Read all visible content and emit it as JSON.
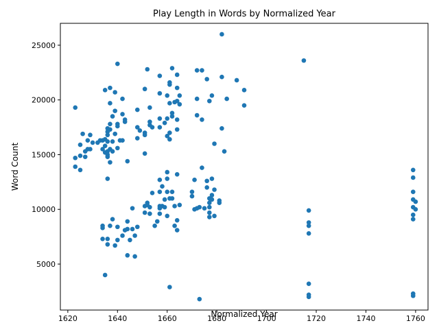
{
  "chart_data": {
    "type": "scatter",
    "title": "Play Length in Words by Normalized Year",
    "xlabel": "Normalized Year",
    "ylabel": "Word Count",
    "xlim": [
      1617,
      1765
    ],
    "ylim": [
      800,
      27000
    ],
    "xticks": [
      1620,
      1640,
      1660,
      1680,
      1700,
      1720,
      1740,
      1760
    ],
    "yticks": [
      5000,
      10000,
      15000,
      20000,
      25000
    ],
    "xtick_labels": [
      "1620",
      "1640",
      "1660",
      "1680",
      "1700",
      "1720",
      "1740",
      "1760"
    ],
    "ytick_labels": [
      "5000",
      "10000",
      "15000",
      "20000",
      "25000"
    ],
    "grid": false,
    "marker_color": "#1f77b4",
    "series": [
      {
        "points": [
          [
            1623,
            19300
          ],
          [
            1623,
            14700
          ],
          [
            1623,
            13900
          ],
          [
            1625,
            15900
          ],
          [
            1625,
            14900
          ],
          [
            1625,
            13600
          ],
          [
            1626,
            16900
          ],
          [
            1627,
            15300
          ],
          [
            1627,
            14800
          ],
          [
            1628,
            16300
          ],
          [
            1628,
            15500
          ],
          [
            1629,
            16800
          ],
          [
            1629,
            15500
          ],
          [
            1630,
            16100
          ],
          [
            1632,
            16100
          ],
          [
            1633,
            16300
          ],
          [
            1634,
            15500
          ],
          [
            1634,
            16300
          ],
          [
            1634,
            8500
          ],
          [
            1634,
            8300
          ],
          [
            1634,
            7300
          ],
          [
            1635,
            20900
          ],
          [
            1635,
            16400
          ],
          [
            1635,
            15800
          ],
          [
            1635,
            15200
          ],
          [
            1635,
            4000
          ],
          [
            1636,
            17400
          ],
          [
            1636,
            17100
          ],
          [
            1636,
            16800
          ],
          [
            1636,
            16200
          ],
          [
            1636,
            15300
          ],
          [
            1636,
            15000
          ],
          [
            1636,
            14800
          ],
          [
            1636,
            12800
          ],
          [
            1636,
            7300
          ],
          [
            1636,
            6800
          ],
          [
            1637,
            21100
          ],
          [
            1637,
            19700
          ],
          [
            1637,
            17800
          ],
          [
            1637,
            17300
          ],
          [
            1637,
            15500
          ],
          [
            1637,
            14300
          ],
          [
            1637,
            8500
          ],
          [
            1638,
            18500
          ],
          [
            1638,
            16200
          ],
          [
            1638,
            15300
          ],
          [
            1638,
            9100
          ],
          [
            1639,
            20700
          ],
          [
            1639,
            19000
          ],
          [
            1639,
            16900
          ],
          [
            1639,
            6700
          ],
          [
            1640,
            23300
          ],
          [
            1640,
            17800
          ],
          [
            1640,
            17600
          ],
          [
            1640,
            15600
          ],
          [
            1640,
            8400
          ],
          [
            1640,
            7200
          ],
          [
            1641,
            16300
          ],
          [
            1642,
            20100
          ],
          [
            1642,
            18700
          ],
          [
            1642,
            16300
          ],
          [
            1642,
            7600
          ],
          [
            1643,
            18200
          ],
          [
            1643,
            18000
          ],
          [
            1643,
            8100
          ],
          [
            1644,
            14400
          ],
          [
            1644,
            8900
          ],
          [
            1644,
            8200
          ],
          [
            1644,
            5800
          ],
          [
            1645,
            7200
          ],
          [
            1646,
            10100
          ],
          [
            1646,
            8200
          ],
          [
            1647,
            7600
          ],
          [
            1647,
            5700
          ],
          [
            1648,
            19100
          ],
          [
            1648,
            17500
          ],
          [
            1648,
            16500
          ],
          [
            1648,
            8400
          ],
          [
            1649,
            17200
          ],
          [
            1651,
            21000
          ],
          [
            1651,
            17000
          ],
          [
            1651,
            16800
          ],
          [
            1651,
            15100
          ],
          [
            1651,
            10300
          ],
          [
            1651,
            9700
          ],
          [
            1652,
            22800
          ],
          [
            1652,
            10600
          ],
          [
            1652,
            10400
          ],
          [
            1653,
            19300
          ],
          [
            1653,
            18000
          ],
          [
            1653,
            17700
          ],
          [
            1653,
            10200
          ],
          [
            1653,
            9600
          ],
          [
            1654,
            17500
          ],
          [
            1654,
            11500
          ],
          [
            1655,
            8500
          ],
          [
            1656,
            8900
          ],
          [
            1657,
            22200
          ],
          [
            1657,
            20600
          ],
          [
            1657,
            18300
          ],
          [
            1657,
            17500
          ],
          [
            1657,
            12700
          ],
          [
            1657,
            11600
          ],
          [
            1657,
            10300
          ],
          [
            1657,
            10100
          ],
          [
            1657,
            9600
          ],
          [
            1658,
            12100
          ],
          [
            1658,
            10300
          ],
          [
            1659,
            17900
          ],
          [
            1659,
            10900
          ],
          [
            1659,
            10200
          ],
          [
            1660,
            20400
          ],
          [
            1660,
            18300
          ],
          [
            1660,
            16700
          ],
          [
            1660,
            13400
          ],
          [
            1660,
            12800
          ],
          [
            1660,
            11600
          ],
          [
            1660,
            9400
          ],
          [
            1661,
            21600
          ],
          [
            1661,
            21400
          ],
          [
            1661,
            19700
          ],
          [
            1661,
            17000
          ],
          [
            1661,
            16400
          ],
          [
            1661,
            11000
          ],
          [
            1661,
            2900
          ],
          [
            1662,
            22900
          ],
          [
            1662,
            18800
          ],
          [
            1662,
            18500
          ],
          [
            1662,
            11600
          ],
          [
            1662,
            11000
          ],
          [
            1663,
            19800
          ],
          [
            1663,
            10300
          ],
          [
            1663,
            8500
          ],
          [
            1664,
            22300
          ],
          [
            1664,
            21100
          ],
          [
            1664,
            19900
          ],
          [
            1664,
            18200
          ],
          [
            1664,
            17300
          ],
          [
            1664,
            13200
          ],
          [
            1664,
            9000
          ],
          [
            1664,
            8100
          ],
          [
            1665,
            20400
          ],
          [
            1665,
            19600
          ],
          [
            1665,
            10400
          ],
          [
            1670,
            11600
          ],
          [
            1670,
            11200
          ],
          [
            1671,
            12700
          ],
          [
            1671,
            10000
          ],
          [
            1672,
            22700
          ],
          [
            1672,
            20100
          ],
          [
            1672,
            18600
          ],
          [
            1672,
            10100
          ],
          [
            1673,
            10200
          ],
          [
            1673,
            1800
          ],
          [
            1674,
            22700
          ],
          [
            1674,
            18200
          ],
          [
            1674,
            13800
          ],
          [
            1675,
            10100
          ],
          [
            1676,
            21900
          ],
          [
            1676,
            12600
          ],
          [
            1676,
            12000
          ],
          [
            1677,
            19900
          ],
          [
            1677,
            11000
          ],
          [
            1677,
            10600
          ],
          [
            1677,
            10200
          ],
          [
            1677,
            9700
          ],
          [
            1677,
            9300
          ],
          [
            1678,
            20400
          ],
          [
            1678,
            12800
          ],
          [
            1678,
            11300
          ],
          [
            1678,
            10900
          ],
          [
            1679,
            16000
          ],
          [
            1679,
            11800
          ],
          [
            1679,
            9400
          ],
          [
            1681,
            10800
          ],
          [
            1681,
            10600
          ],
          [
            1682,
            26000
          ],
          [
            1682,
            22100
          ],
          [
            1682,
            17400
          ],
          [
            1683,
            15300
          ],
          [
            1684,
            20100
          ],
          [
            1688,
            21800
          ],
          [
            1691,
            20900
          ],
          [
            1691,
            19500
          ],
          [
            1715,
            23600
          ],
          [
            1717,
            9900
          ],
          [
            1717,
            8800
          ],
          [
            1717,
            8500
          ],
          [
            1717,
            7800
          ],
          [
            1717,
            3200
          ],
          [
            1717,
            2200
          ],
          [
            1717,
            2000
          ],
          [
            1759,
            13600
          ],
          [
            1759,
            12900
          ],
          [
            1759,
            11600
          ],
          [
            1759,
            10900
          ],
          [
            1759,
            10200
          ],
          [
            1759,
            9500
          ],
          [
            1759,
            9100
          ],
          [
            1759,
            2300
          ],
          [
            1759,
            2100
          ],
          [
            1760,
            10700
          ],
          [
            1760,
            10000
          ]
        ]
      }
    ]
  }
}
